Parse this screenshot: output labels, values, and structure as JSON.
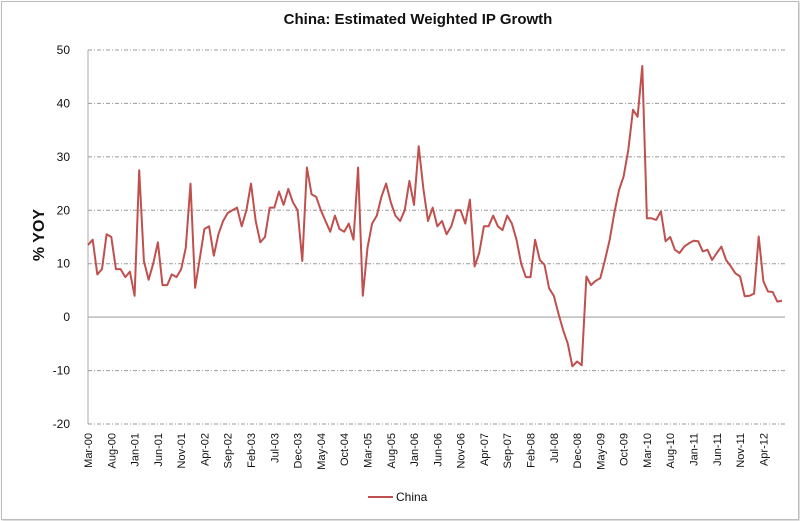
{
  "chart_data": {
    "type": "line",
    "title": "China: Estimated Weighted IP Growth",
    "xlabel": "",
    "ylabel": "% YOY",
    "ylim": [
      -20,
      50
    ],
    "yticks": [
      -20,
      -10,
      0,
      10,
      20,
      30,
      40,
      50
    ],
    "grid": true,
    "legend_position": "bottom",
    "color": "#c0504d",
    "x_start": "Mar-00",
    "x_end": "Aug-12",
    "x_frequency": "monthly",
    "xtick_every": 5,
    "xtick_labels": [
      "Mar-00",
      "Aug-00",
      "Jan-01",
      "Jun-01",
      "Nov-01",
      "Apr-02",
      "Sep-02",
      "Feb-03",
      "Jul-03",
      "Dec-03",
      "May-04",
      "Oct-04",
      "Mar-05",
      "Aug-05",
      "Jan-06",
      "Jun-06",
      "Nov-06",
      "Apr-07",
      "Sep-07",
      "Feb-08",
      "Jul-08",
      "Dec-08",
      "May-09",
      "Oct-09",
      "Mar-10",
      "Aug-10",
      "Jan-11",
      "Jun-11",
      "Nov-11",
      "Apr-12"
    ],
    "series": [
      {
        "name": "China",
        "values": [
          13.5,
          14.5,
          8,
          9,
          15.5,
          15,
          9,
          9,
          7.5,
          8.5,
          4,
          27.5,
          10.5,
          7,
          10,
          14,
          6,
          6,
          8,
          7.5,
          9,
          13,
          25,
          5.5,
          11,
          16.5,
          17,
          11.5,
          15.5,
          18,
          19.5,
          20,
          20.5,
          17,
          20,
          25,
          18,
          14,
          15,
          20.5,
          20.5,
          23.5,
          21,
          24,
          21.5,
          20,
          10.5,
          28,
          23,
          22.5,
          20,
          18,
          16,
          19,
          16.5,
          16,
          17.5,
          14.5,
          28,
          4,
          13,
          17.5,
          19,
          22.5,
          25,
          21.5,
          19,
          18,
          20,
          25.5,
          21,
          32,
          24,
          18,
          20.5,
          17,
          18,
          15.5,
          17,
          20,
          20,
          17.5,
          22,
          9.5,
          12,
          17,
          17,
          19,
          17,
          16.3,
          19,
          17.5,
          14.5,
          10,
          7.5,
          7.5,
          14.5,
          10.7,
          9.8,
          5.4,
          4,
          0.7,
          -2.4,
          -4.9,
          -9.2,
          -8.3,
          -9,
          7.6,
          6,
          6.8,
          7.3,
          10.7,
          14.5,
          19.5,
          23.8,
          26.3,
          31.3,
          38.8,
          37.5,
          47,
          18.5,
          18.5,
          18.2,
          19.8,
          14.2,
          15,
          12.6,
          12,
          13.2,
          13.8,
          14.3,
          14.2,
          12.3,
          12.6,
          10.7,
          12,
          13.2,
          10.7,
          9.5,
          8.2,
          7.6,
          3.9,
          4,
          4.4,
          15.1,
          6.7,
          4.8,
          4.7,
          2.9,
          3.1
        ]
      }
    ]
  }
}
